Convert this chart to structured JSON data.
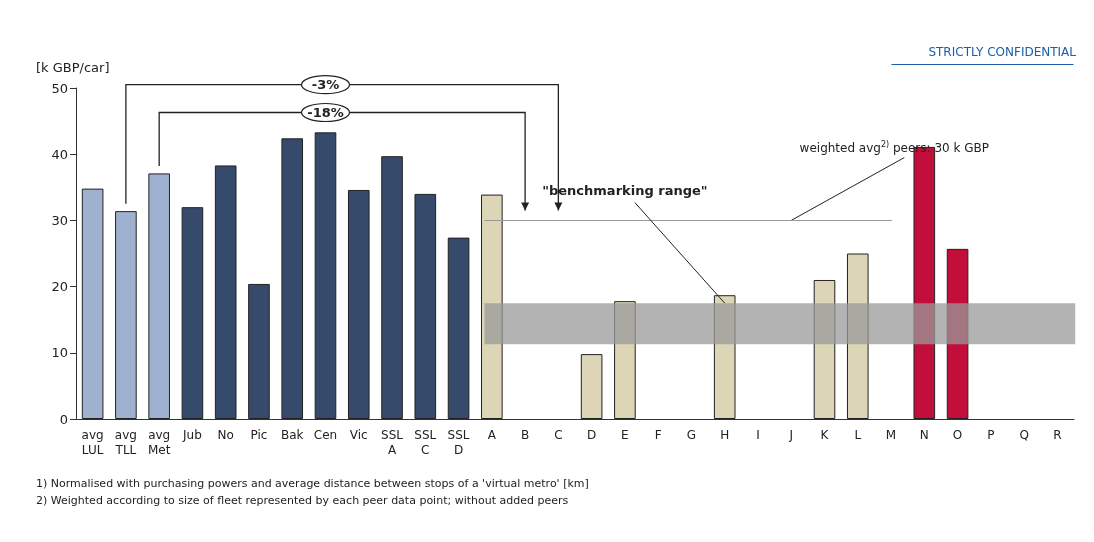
{
  "chart_data": {
    "type": "bar",
    "ylabel": "[k GBP/car]",
    "categories": [
      "avg\nLUL",
      "avg\nTLL",
      "avg\nMet",
      "Jub",
      "No",
      "Pic",
      "Bak",
      "Cen",
      "Vic",
      "SSL\nA",
      "SSL\nC",
      "SSL\nD",
      "A",
      "B",
      "C",
      "D",
      "E",
      "F",
      "G",
      "H",
      "I",
      "J",
      "K",
      "L",
      "M",
      "N",
      "O",
      "P",
      "Q",
      "R"
    ],
    "values": [
      34.8,
      31.4,
      37.1,
      32,
      38.3,
      20.4,
      42.4,
      43.3,
      34.6,
      39.7,
      34,
      27.4,
      33.9,
      null,
      null,
      9.8,
      17.8,
      null,
      null,
      18.7,
      null,
      null,
      21,
      25,
      null,
      41.1,
      25.7,
      null,
      null,
      null
    ],
    "colors": [
      "#9eb1cf",
      "#9eb1cf",
      "#9eb1cf",
      "#364b6c",
      "#364b6c",
      "#364b6c",
      "#364b6c",
      "#364b6c",
      "#364b6c",
      "#364b6c",
      "#364b6c",
      "#364b6c",
      "#dcd6b7",
      "#dcd6b7",
      "#dcd6b7",
      "#dcd6b7",
      "#dcd6b7",
      "#dcd6b7",
      "#dcd6b7",
      "#dcd6b7",
      "#dcd6b7",
      "#dcd6b7",
      "#dcd6b7",
      "#dcd6b7",
      "#dcd6b7",
      "#c20e3b",
      "#c20e3b",
      "#c20e3b",
      "#c20e3b",
      "#c20e3b"
    ],
    "ylim": [
      0,
      50
    ],
    "yticks": [
      0,
      10,
      20,
      30,
      40,
      50
    ],
    "grid": false,
    "ref_lines": [
      {
        "axis": "y",
        "value": 30,
        "label": "weighted avg$^{2)}$ peers: 30 k GBP",
        "color": "#999999"
      }
    ],
    "bands": [
      {
        "axis": "y",
        "from": 11.3,
        "to": 17.5,
        "label": "\"benchmarking range\"",
        "color": "#9a9a9a"
      }
    ],
    "annotations": [
      "STRICTLY CONFIDENTIAL",
      "-3%",
      "-18%",
      "1) Normalised with purchasing powers and average distance between stops of a 'virtual metro' [km]",
      "2) Weighted according to size of fleet represented by each peer data point; without added peers"
    ]
  }
}
